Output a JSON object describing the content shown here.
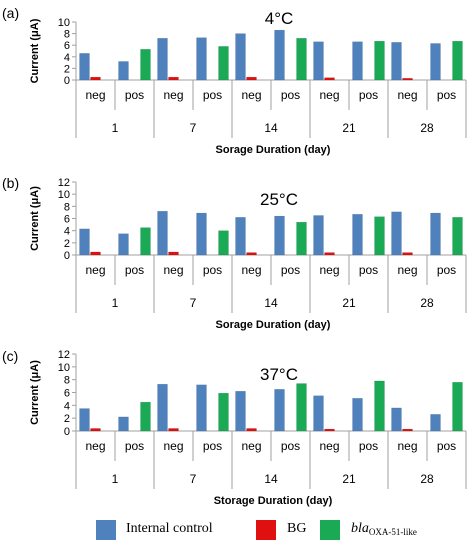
{
  "colors": {
    "internal": "#4f81bd",
    "bg": "#e01010",
    "bla": "#1aa955",
    "axis": "#a0a0a0"
  },
  "legend": {
    "internal": "Internal control",
    "bg": "BG",
    "bla_main": "bla",
    "bla_sub": "OXA-51-like"
  },
  "chart_data": [
    {
      "type": "bar",
      "panel_label": "(a)",
      "title": "4°C",
      "ylabel": "Current (μA)",
      "xlabel": "Sorage Duration (day)",
      "ylim": [
        0,
        10
      ],
      "yticks": [
        0,
        2,
        4,
        6,
        8,
        10
      ],
      "groups": [
        "1",
        "7",
        "14",
        "21",
        "28"
      ],
      "categories": [
        "neg",
        "pos",
        "neg",
        "pos",
        "neg",
        "pos",
        "neg",
        "pos",
        "neg",
        "pos"
      ],
      "series": [
        {
          "name": "Internal control",
          "values": [
            4.6,
            3.2,
            7.2,
            7.3,
            8.0,
            8.6,
            6.6,
            6.6,
            6.5,
            6.3
          ]
        },
        {
          "name": "BG",
          "values": [
            0.5,
            0,
            0.5,
            0,
            0.5,
            0,
            0.4,
            0,
            0.3,
            0
          ]
        },
        {
          "name": "blaOXA-51-like",
          "values": [
            0,
            5.3,
            0,
            5.8,
            0,
            7.2,
            0,
            6.7,
            0,
            6.7
          ]
        }
      ]
    },
    {
      "type": "bar",
      "panel_label": "(b)",
      "title": "25°C",
      "ylabel": "Current (μA)",
      "xlabel": "Sorage Duration (day)",
      "ylim": [
        0,
        12
      ],
      "yticks": [
        0,
        2,
        4,
        6,
        8,
        10,
        12
      ],
      "groups": [
        "1",
        "7",
        "14",
        "21",
        "28"
      ],
      "categories": [
        "neg",
        "pos",
        "neg",
        "pos",
        "neg",
        "pos",
        "neg",
        "pos",
        "neg",
        "pos"
      ],
      "series": [
        {
          "name": "Internal control",
          "values": [
            4.3,
            3.5,
            7.2,
            6.9,
            6.2,
            6.4,
            6.5,
            6.7,
            7.1,
            6.9
          ]
        },
        {
          "name": "BG",
          "values": [
            0.5,
            0,
            0.5,
            0,
            0.4,
            0,
            0.4,
            0,
            0.4,
            0
          ]
        },
        {
          "name": "blaOXA-51-like",
          "values": [
            0,
            4.5,
            0,
            4.0,
            0,
            5.4,
            0,
            6.3,
            0,
            6.2
          ]
        }
      ]
    },
    {
      "type": "bar",
      "panel_label": "(c)",
      "title": "37°C",
      "ylabel": "Current (μA)",
      "xlabel": "Storage Duration (day)",
      "ylim": [
        0,
        12
      ],
      "yticks": [
        0,
        2,
        4,
        6,
        8,
        10,
        12
      ],
      "groups": [
        "1",
        "7",
        "14",
        "21",
        "28"
      ],
      "categories": [
        "neg",
        "pos",
        "neg",
        "pos",
        "neg",
        "pos",
        "neg",
        "pos",
        "neg",
        "pos"
      ],
      "series": [
        {
          "name": "Internal control",
          "values": [
            3.5,
            2.2,
            7.3,
            7.2,
            6.2,
            6.5,
            5.5,
            5.1,
            3.6,
            2.6
          ]
        },
        {
          "name": "BG",
          "values": [
            0.4,
            0,
            0.4,
            0,
            0.4,
            0,
            0.3,
            0,
            0.3,
            0
          ]
        },
        {
          "name": "blaOXA-51-like",
          "values": [
            0,
            4.5,
            0,
            5.9,
            0,
            7.4,
            0,
            7.8,
            0,
            7.6
          ]
        }
      ]
    }
  ]
}
